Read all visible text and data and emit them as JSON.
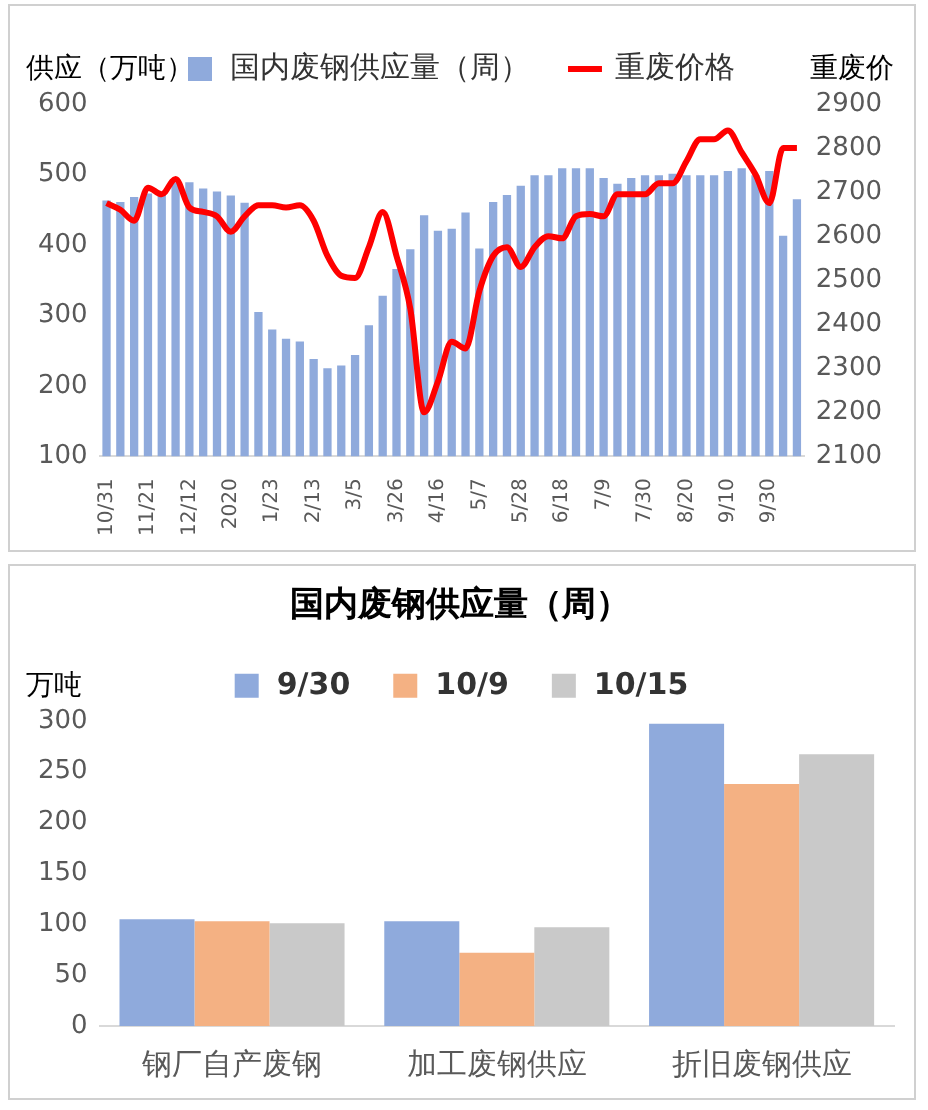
{
  "chart_data": [
    {
      "type": "bar",
      "ylabel": "供应（万吨）",
      "y2label": "重废价",
      "legend": "top",
      "grid": false,
      "categories": [
        "10/31",
        null,
        null,
        "11/21",
        null,
        null,
        "12/12",
        null,
        null,
        "2020",
        null,
        null,
        "1/23",
        null,
        null,
        "2/13",
        null,
        null,
        "3/5",
        null,
        null,
        "3/26",
        null,
        null,
        "4/16",
        null,
        null,
        "5/7",
        null,
        null,
        "5/28",
        null,
        null,
        "6/18",
        null,
        null,
        "7/9",
        null,
        null,
        "7/30",
        null,
        null,
        "8/20",
        null,
        null,
        "9/10",
        null,
        null,
        "9/30",
        null,
        null
      ],
      "series": [
        {
          "name": "国内废钢供应量（周）",
          "color": "#8faadc",
          "values": [
            463,
            461,
            468,
            473,
            473,
            489,
            489,
            480,
            476,
            470,
            460,
            305,
            280,
            267,
            263,
            238,
            225,
            229,
            244,
            286,
            328,
            366,
            394,
            442,
            420,
            423,
            446,
            395,
            461,
            471,
            484,
            499,
            499,
            509,
            509,
            509,
            495,
            487,
            495,
            499,
            499,
            501,
            499,
            499,
            499,
            505,
            509,
            499,
            505,
            413,
            465
          ]
        },
        {
          "name": "重废价格",
          "type": "line",
          "axis": "y2",
          "color": "#ff0000",
          "values": [
            2675,
            2660,
            2635,
            2710,
            2695,
            2730,
            2665,
            2655,
            2645,
            2610,
            2645,
            2670,
            2670,
            2665,
            2670,
            2635,
            2555,
            2510,
            2505,
            2575,
            2655,
            2555,
            2435,
            2200,
            2270,
            2360,
            2345,
            2475,
            2555,
            2575,
            2530,
            2575,
            2600,
            2595,
            2645,
            2650,
            2645,
            2695,
            2695,
            2695,
            2720,
            2720,
            2770,
            2820,
            2820,
            2840,
            2790,
            2740,
            2675,
            2800,
            2800
          ]
        }
      ],
      "ylim": [
        100,
        600
      ],
      "yticks": [
        100,
        200,
        300,
        400,
        500,
        600
      ],
      "y2lim": [
        2100,
        2900
      ],
      "y2ticks": [
        2100,
        2200,
        2300,
        2400,
        2500,
        2600,
        2700,
        2800,
        2900
      ]
    },
    {
      "type": "bar",
      "title": "国内废钢供应量（周）",
      "ylabel": "万吨",
      "legend": "top",
      "grid": false,
      "categories": [
        "钢厂自产废钢",
        "加工废钢供应",
        "折旧废钢供应"
      ],
      "series": [
        {
          "name": "9/30",
          "color": "#8faadc",
          "values": [
            105,
            103,
            297
          ]
        },
        {
          "name": "10/9",
          "color": "#f4b183",
          "values": [
            103,
            72,
            238
          ]
        },
        {
          "name": "10/15",
          "color": "#c9c9c9",
          "values": [
            101,
            97,
            267
          ]
        }
      ],
      "ylim": [
        0,
        300
      ],
      "yticks": [
        0,
        50,
        100,
        150,
        200,
        250,
        300
      ]
    }
  ]
}
